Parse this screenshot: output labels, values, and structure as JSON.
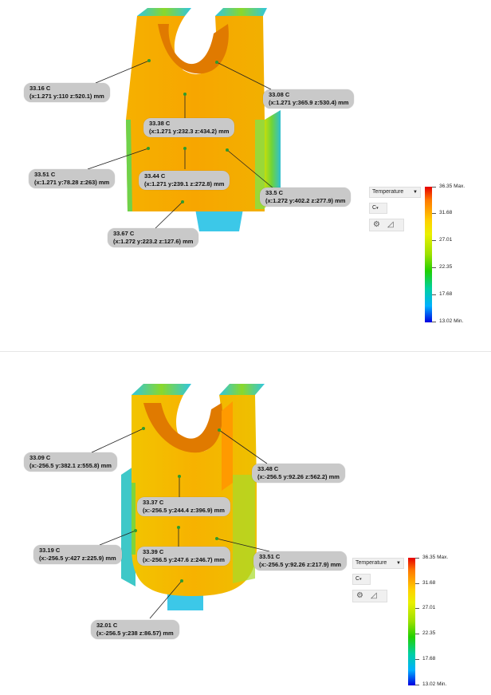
{
  "views": [
    {
      "legend": {
        "quantity": "Temperature",
        "unit": "C",
        "ticks": [
          "36.35 Max.",
          "31.68",
          "27.01",
          "22.35",
          "17.68",
          "13.02 Min."
        ]
      },
      "probes": [
        {
          "temp": "33.16 C",
          "coords": "(x:1.271 y:110 z:520.1) mm"
        },
        {
          "temp": "33.08 C",
          "coords": "(x:1.271 y:365.9 z:530.4) mm"
        },
        {
          "temp": "33.38 C",
          "coords": "(x:1.271 y:232.3 z:434.2) mm"
        },
        {
          "temp": "33.51 C",
          "coords": "(x:1.271 y:78.28 z:263) mm"
        },
        {
          "temp": "33.44 C",
          "coords": "(x:1.271 y:239.1 z:272.8) mm"
        },
        {
          "temp": "33.5 C",
          "coords": "(x:1.272 y:402.2 z:277.9) mm"
        },
        {
          "temp": "33.67 C",
          "coords": "(x:1.272 y:223.2 z:127.6) mm"
        }
      ]
    },
    {
      "legend": {
        "quantity": "Temperature",
        "unit": "C",
        "ticks": [
          "36.35 Max.",
          "31.68",
          "27.01",
          "22.35",
          "17.68",
          "13.02 Min."
        ]
      },
      "probes": [
        {
          "temp": "33.09 C",
          "coords": "(x:-256.5 y:382.1 z:555.8) mm"
        },
        {
          "temp": "33.48 C",
          "coords": "(x:-256.5 y:92.26 z:562.2) mm"
        },
        {
          "temp": "33.37 C",
          "coords": "(x:-256.5 y:244.4 z:396.9) mm"
        },
        {
          "temp": "33.19 C",
          "coords": "(x:-256.5 y:427 z:225.9) mm"
        },
        {
          "temp": "33.39 C",
          "coords": "(x:-256.5 y:247.6 z:246.7) mm"
        },
        {
          "temp": "33.51 C",
          "coords": "(x:-256.5 y:92.26 z:217.9) mm"
        },
        {
          "temp": "32.01 C",
          "coords": "(x:-256.5 y:238 z:86.57) mm"
        }
      ]
    }
  ],
  "colors": {
    "part_main": "#f5a800",
    "part_dark": "#d46c00",
    "edge_green": "#7ad22a",
    "edge_cyan": "#2fc6e0",
    "label_bg": "#c9c9c9"
  },
  "icons": [
    "gear-icon",
    "triangle-ruler-icon",
    "caret-down-icon"
  ]
}
